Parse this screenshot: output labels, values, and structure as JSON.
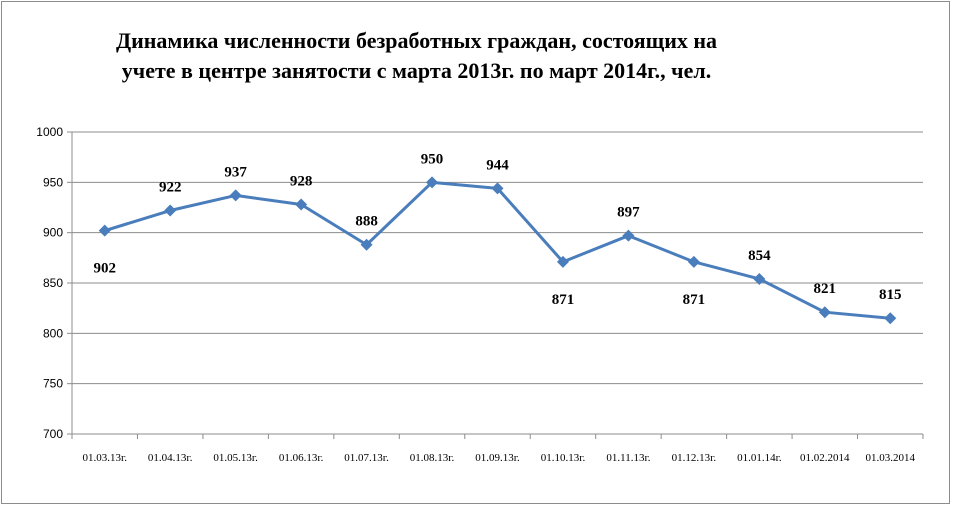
{
  "chart_data": {
    "type": "line",
    "title": "Динамика численности безработных граждан, состоящих на учете в центре занятости с марта 2013г. по март 2014г., чел.",
    "title_lines": [
      "Динамика численности безработных граждан, состоящих на",
      "учете в центре занятости с марта 2013г. по март 2014г., чел."
    ],
    "categories": [
      "01.03.13г.",
      "01.04.13г.",
      "01.05.13г.",
      "01.06.13г.",
      "01.07.13г.",
      "01.08.13г.",
      "01.09.13г.",
      "01.10.13г.",
      "01.11.13г.",
      "01.12.13г.",
      "01.01.14г.",
      "01.02.2014",
      "01.03.2014"
    ],
    "values": [
      902,
      922,
      937,
      928,
      888,
      950,
      944,
      871,
      897,
      871,
      854,
      821,
      815
    ],
    "label_position": [
      "below",
      "above",
      "above",
      "above",
      "above",
      "above",
      "above",
      "below",
      "above",
      "below",
      "above",
      "above",
      "above"
    ],
    "ylim": [
      700,
      1000
    ],
    "yticks": [
      700,
      750,
      800,
      850,
      900,
      950,
      1000
    ],
    "grid": true,
    "line_color": "#4a7dbb",
    "marker": "diamond",
    "xlabel": "",
    "ylabel": ""
  }
}
